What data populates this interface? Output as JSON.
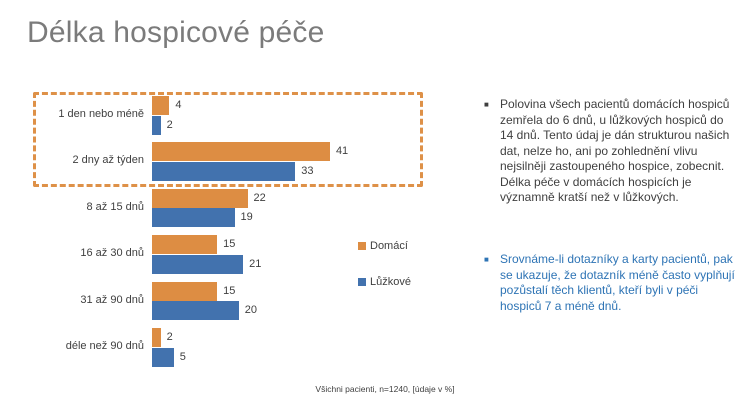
{
  "slide": {
    "title": "Délka hospicové péče",
    "title_color": "#7b7b7b",
    "background": "#ffffff",
    "footnote": "Všichni pacienti, n=1240, [údaje v %]"
  },
  "chart_data": {
    "type": "bar",
    "orientation": "horizontal",
    "title": "Délka hospicové péče",
    "categories": [
      "1 den nebo méně",
      "2 dny až týden",
      "8 až 15 dnů",
      "16 až 30 dnů",
      "31 až 90 dnů",
      "déle než 90 dnů"
    ],
    "series": [
      {
        "name": "Domácí",
        "color": "#dd8d43",
        "values": [
          4,
          41,
          22,
          15,
          15,
          2
        ]
      },
      {
        "name": "Lůžkové",
        "color": "#4272ae",
        "values": [
          2,
          33,
          19,
          21,
          20,
          5
        ]
      }
    ],
    "units": "%",
    "xlim": [
      0,
      45
    ],
    "grid": false,
    "value_labels": true,
    "legend_position": "right-middle",
    "highlight_box": {
      "style": "dashed",
      "color": "#de9148",
      "categories_covered": [
        "1 den nebo méně",
        "2 dny až týden"
      ]
    }
  },
  "notes": {
    "bullet1": {
      "text": "Polovina všech pacientů domácích hospiců zemřela do 6 dnů, u lůžkových hospiců do 14 dnů. Tento údaj je dán strukturou našich dat, nelze ho, ani po zohlednění vlivu nejsilněji zastoupeného hospice, zobecnit. Délka péče v domácích hospicích je významně kratší než v lůžkových.",
      "color": "#3f3f3f"
    },
    "bullet2": {
      "text": "Srovnáme-li dotazníky a karty pacientů, pak se ukazuje, že dotazník méně často vyplňují pozůstalí těch klientů, kteří byli v péči hospiců 7 a méně dnů.",
      "color": "#2e74b5"
    }
  }
}
